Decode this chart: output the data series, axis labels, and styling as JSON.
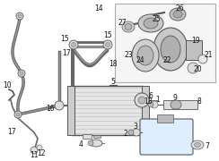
{
  "bg_color": "#ffffff",
  "fig_width": 2.44,
  "fig_height": 1.8,
  "dpi": 100,
  "line_color": "#555555",
  "light_gray": "#dddddd",
  "mid_gray": "#bbbbbb",
  "dark_gray": "#888888"
}
